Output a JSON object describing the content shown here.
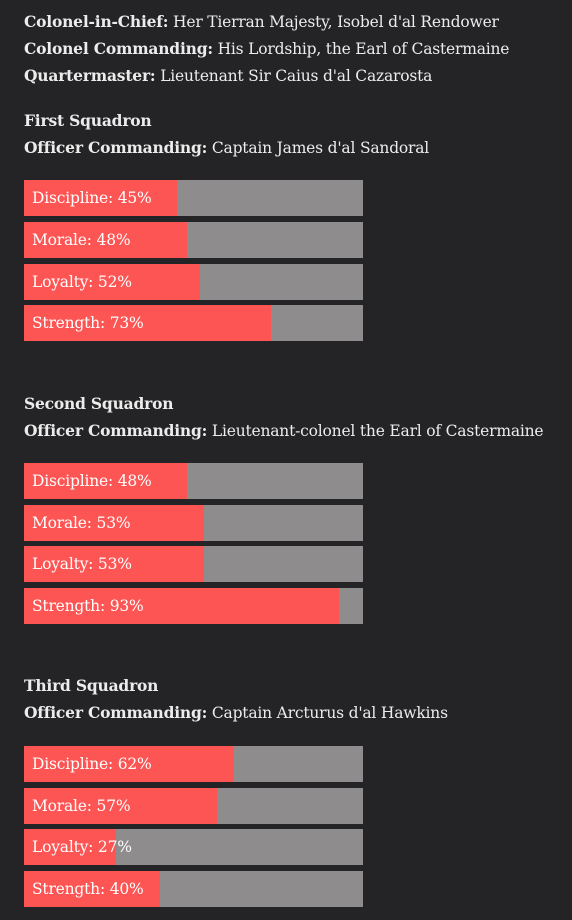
{
  "header": [
    {
      "label": "Colonel-in-Chief:",
      "value": "Her Tierran Majesty, Isobel d'al Rendower"
    },
    {
      "label": "Colonel Commanding:",
      "value": "His Lordship, the Earl of Castermaine"
    },
    {
      "label": "Quartermaster:",
      "value": "Lieutenant Sir Caius d'al Cazarosta"
    }
  ],
  "squadrons": [
    {
      "name": "First Squadron",
      "officer_label": "Officer Commanding:",
      "officer": "Captain James d'al Sandoral",
      "stats": [
        {
          "label": "Discipline: 45%",
          "value": 0.45
        },
        {
          "label": "Morale: 48%",
          "value": 0.48
        },
        {
          "label": "Loyalty: 52%",
          "value": 0.52
        },
        {
          "label": "Strength: 73%",
          "value": 0.73
        }
      ]
    },
    {
      "name": "Second Squadron",
      "officer_label": "Officer Commanding:",
      "officer": "Lieutenant-colonel the Earl of Castermaine",
      "stats": [
        {
          "label": "Discipline: 48%",
          "value": 0.48
        },
        {
          "label": "Morale: 53%",
          "value": 0.53
        },
        {
          "label": "Loyalty: 53%",
          "value": 0.53
        },
        {
          "label": "Strength: 93%",
          "value": 0.93
        }
      ]
    },
    {
      "name": "Third Squadron",
      "officer_label": "Officer Commanding:",
      "officer": "Captain Arcturus d'al Hawkins",
      "stats": [
        {
          "label": "Discipline: 62%",
          "value": 0.62
        },
        {
          "label": "Morale: 57%",
          "value": 0.57
        },
        {
          "label": "Loyalty: 27%",
          "value": 0.27
        },
        {
          "label": "Strength: 40%",
          "value": 0.4
        }
      ]
    }
  ],
  "colors": {
    "background": "#242325",
    "bar_fill": "#fd5554",
    "bar_track": "#8e8c8d",
    "text": "#ececec"
  }
}
